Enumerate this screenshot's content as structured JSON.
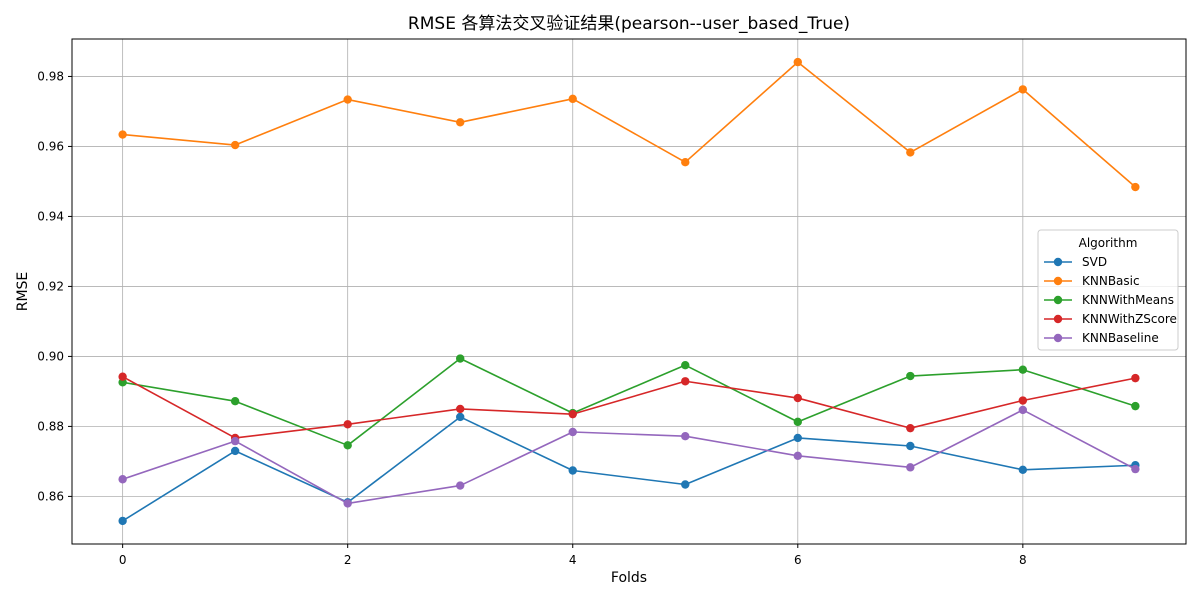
{
  "chart_data": {
    "type": "line",
    "title": "RMSE 各算法交叉验证结果(pearson--user_based_True)",
    "xlabel": "Folds",
    "ylabel": "RMSE",
    "x": [
      0,
      1,
      2,
      3,
      4,
      5,
      6,
      7,
      8,
      9
    ],
    "xlim": [
      -0.45,
      9.45
    ],
    "ylim": [
      0.8464,
      0.9907
    ],
    "xticks": [
      0,
      2,
      4,
      6,
      8
    ],
    "yticks": [
      0.86,
      0.88,
      0.9,
      0.92,
      0.94,
      0.96,
      0.98
    ],
    "ytick_labels": [
      "0.86",
      "0.88",
      "0.90",
      "0.92",
      "0.94",
      "0.96",
      "0.98"
    ],
    "grid": true,
    "legend": {
      "title": "Algorithm",
      "placement": "center-right"
    },
    "series": [
      {
        "name": "SVD",
        "color": "#1f77b4",
        "values": [
          0.853,
          0.873,
          0.8583,
          0.8827,
          0.8674,
          0.8634,
          0.8767,
          0.8744,
          0.8676,
          0.8689
        ]
      },
      {
        "name": "KNNBasic",
        "color": "#ff7f0e",
        "values": [
          0.9634,
          0.9604,
          0.9734,
          0.9669,
          0.9736,
          0.9555,
          0.9841,
          0.9583,
          0.9763,
          0.9484
        ]
      },
      {
        "name": "KNNWithMeans",
        "color": "#2ca02c",
        "values": [
          0.8926,
          0.8872,
          0.8746,
          0.8994,
          0.8838,
          0.8975,
          0.8813,
          0.8944,
          0.8962,
          0.8858
        ]
      },
      {
        "name": "KNNWithZScore",
        "color": "#d62728",
        "values": [
          0.8942,
          0.8767,
          0.8806,
          0.885,
          0.8835,
          0.8929,
          0.8881,
          0.8795,
          0.8874,
          0.8938
        ]
      },
      {
        "name": "KNNBaseline",
        "color": "#9467bd",
        "values": [
          0.8649,
          0.8758,
          0.858,
          0.8631,
          0.8784,
          0.8772,
          0.8716,
          0.8683,
          0.8847,
          0.8678
        ]
      }
    ]
  }
}
